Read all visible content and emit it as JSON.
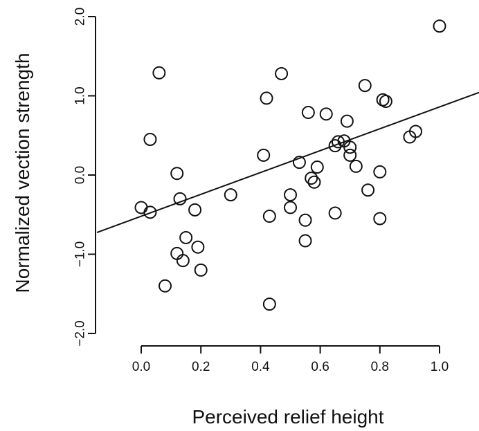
{
  "chart_data": {
    "type": "scatter",
    "title": "",
    "xlabel": "Perceived relief height",
    "ylabel": "Normalized vection strength",
    "xlim": [
      -0.15,
      1.05
    ],
    "ylim": [
      -2.0,
      2.0
    ],
    "x_ticks": [
      0.0,
      0.2,
      0.4,
      0.6,
      0.8,
      1.0
    ],
    "x_tick_labels": [
      "0.0",
      "0.2",
      "0.4",
      "0.6",
      "0.8",
      "1.0"
    ],
    "y_ticks": [
      -2.0,
      -1.0,
      0.0,
      1.0,
      2.0
    ],
    "y_tick_labels": [
      "−2.0",
      "−1.0",
      "0.0",
      "1.0",
      "2.0"
    ],
    "grid": false,
    "legend": "none",
    "points": [
      {
        "x": 0.0,
        "y": -0.41
      },
      {
        "x": 0.03,
        "y": -0.47
      },
      {
        "x": 0.03,
        "y": 0.45
      },
      {
        "x": 0.06,
        "y": 1.29
      },
      {
        "x": 0.08,
        "y": -1.4
      },
      {
        "x": 0.12,
        "y": 0.02
      },
      {
        "x": 0.12,
        "y": -0.99
      },
      {
        "x": 0.13,
        "y": -0.3
      },
      {
        "x": 0.14,
        "y": -1.08
      },
      {
        "x": 0.15,
        "y": -0.79
      },
      {
        "x": 0.18,
        "y": -0.44
      },
      {
        "x": 0.19,
        "y": -0.91
      },
      {
        "x": 0.2,
        "y": -1.2
      },
      {
        "x": 0.3,
        "y": -0.25
      },
      {
        "x": 0.41,
        "y": 0.25
      },
      {
        "x": 0.42,
        "y": 0.97
      },
      {
        "x": 0.43,
        "y": -0.52
      },
      {
        "x": 0.43,
        "y": -1.63
      },
      {
        "x": 0.47,
        "y": 1.28
      },
      {
        "x": 0.5,
        "y": -0.25
      },
      {
        "x": 0.5,
        "y": -0.41
      },
      {
        "x": 0.53,
        "y": 0.16
      },
      {
        "x": 0.55,
        "y": -0.57
      },
      {
        "x": 0.55,
        "y": -0.83
      },
      {
        "x": 0.56,
        "y": 0.79
      },
      {
        "x": 0.57,
        "y": -0.04
      },
      {
        "x": 0.58,
        "y": -0.09
      },
      {
        "x": 0.59,
        "y": 0.1
      },
      {
        "x": 0.62,
        "y": 0.77
      },
      {
        "x": 0.65,
        "y": -0.48
      },
      {
        "x": 0.65,
        "y": 0.37
      },
      {
        "x": 0.66,
        "y": 0.42
      },
      {
        "x": 0.68,
        "y": 0.43
      },
      {
        "x": 0.69,
        "y": 0.68
      },
      {
        "x": 0.7,
        "y": 0.35
      },
      {
        "x": 0.7,
        "y": 0.25
      },
      {
        "x": 0.72,
        "y": 0.11
      },
      {
        "x": 0.75,
        "y": 1.13
      },
      {
        "x": 0.76,
        "y": -0.19
      },
      {
        "x": 0.8,
        "y": -0.55
      },
      {
        "x": 0.8,
        "y": 0.04
      },
      {
        "x": 0.81,
        "y": 0.95
      },
      {
        "x": 0.82,
        "y": 0.93
      },
      {
        "x": 0.9,
        "y": 0.48
      },
      {
        "x": 0.92,
        "y": 0.55
      },
      {
        "x": 1.0,
        "y": 1.88
      }
    ],
    "fit_line": {
      "slope": 1.38,
      "intercept": -0.52
    }
  }
}
